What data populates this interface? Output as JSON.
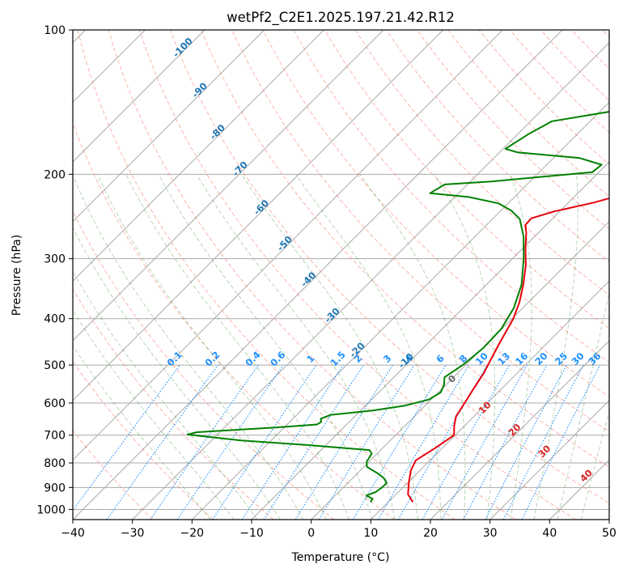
{
  "chart_data": {
    "type": "line",
    "title": "wetPf2_C2E1.2025.197.21.42.R12",
    "xlabel": "Temperature (°C)",
    "ylabel": "Pressure (hPa)",
    "xlim": [
      -40,
      50
    ],
    "ylim": [
      1050,
      100
    ],
    "y_scale": "log",
    "x_ticks": [
      -40,
      -30,
      -20,
      -10,
      0,
      10,
      20,
      30,
      40,
      50
    ],
    "y_ticks": [
      100,
      200,
      300,
      400,
      500,
      600,
      700,
      800,
      900,
      1000
    ],
    "grid": true,
    "skew": "temperature isotherms are skewed 45°",
    "isotherm_labels": [
      -100,
      -90,
      -80,
      -70,
      -60,
      -50,
      -40,
      -30,
      -20,
      -10
    ],
    "mixing_ratio_labels": [
      "0.1",
      "0.2",
      "0.4",
      "0.6",
      "1",
      "1.5",
      "2",
      "3",
      "4",
      "6",
      "8",
      "10",
      "13",
      "16",
      "20",
      "25",
      "30",
      "36"
    ],
    "moist_adiabat_labels": [
      "0",
      "10",
      "20",
      "30",
      "40"
    ],
    "colors": {
      "temperature": "#e8000b",
      "dewpoint": "#008000",
      "dry_adiabat": "#fa8072",
      "moist_adiabat": "#2e8b22",
      "mixing_ratio": "#1e90ff",
      "isotherm_label": "#1f77b4",
      "moist_label": "#d62728",
      "grid": "#aaaaaa"
    },
    "series": [
      {
        "profile": "temperature",
        "points": [
          [
            14.1,
            965
          ],
          [
            12.0,
            930
          ],
          [
            10.2,
            880
          ],
          [
            8.5,
            830
          ],
          [
            7.6,
            790
          ],
          [
            8.8,
            745
          ],
          [
            9.8,
            700
          ],
          [
            8.3,
            670
          ],
          [
            7.0,
            640
          ],
          [
            6.2,
            600
          ],
          [
            5.3,
            560
          ],
          [
            4.4,
            520
          ],
          [
            3.4,
            490
          ],
          [
            2.0,
            450
          ],
          [
            0.2,
            400
          ],
          [
            -1.5,
            370
          ],
          [
            -3.8,
            340
          ],
          [
            -6.6,
            310
          ],
          [
            -9.6,
            285
          ],
          [
            -12.0,
            265
          ],
          [
            -13.5,
            255
          ],
          [
            -13.6,
            247
          ],
          [
            -10.9,
            239
          ],
          [
            -5.7,
            229
          ],
          [
            -2.5,
            221
          ],
          [
            0.1,
            212
          ],
          [
            2.0,
            203
          ],
          [
            2.3,
            195
          ],
          [
            2.8,
            185
          ],
          [
            3.2,
            175
          ],
          [
            2.9,
            165
          ],
          [
            3.4,
            155
          ],
          [
            3.7,
            145
          ],
          [
            4.8,
            135
          ],
          [
            6.8,
            125
          ],
          [
            7.5,
            118
          ],
          [
            8.5,
            110
          ],
          [
            9.3,
            104
          ],
          [
            10.0,
            100
          ]
        ]
      },
      {
        "profile": "dewpoint",
        "points": [
          [
            7.0,
            965
          ],
          [
            6.8,
            950
          ],
          [
            5.2,
            935
          ],
          [
            6.2,
            920
          ],
          [
            6.5,
            900
          ],
          [
            6.5,
            880
          ],
          [
            5.2,
            860
          ],
          [
            3.3,
            840
          ],
          [
            0.5,
            815
          ],
          [
            -0.4,
            795
          ],
          [
            -0.9,
            765
          ],
          [
            -1.9,
            752
          ],
          [
            -12.5,
            735
          ],
          [
            -25.0,
            718
          ],
          [
            -35.0,
            698
          ],
          [
            -33.8,
            690
          ],
          [
            -21.5,
            675
          ],
          [
            -15.0,
            665
          ],
          [
            -14.7,
            657
          ],
          [
            -15.3,
            647
          ],
          [
            -14.3,
            635
          ],
          [
            -8.0,
            622
          ],
          [
            -3.5,
            608
          ],
          [
            -0.4,
            590
          ],
          [
            0.4,
            570
          ],
          [
            -0.3,
            550
          ],
          [
            -1.5,
            530
          ],
          [
            -0.5,
            500
          ],
          [
            0.1,
            460
          ],
          [
            -0.1,
            420
          ],
          [
            -1.5,
            380
          ],
          [
            -4.1,
            340
          ],
          [
            -8.1,
            300
          ],
          [
            -11.8,
            270
          ],
          [
            -15.4,
            248
          ],
          [
            -18.3,
            238
          ],
          [
            -21.6,
            230
          ],
          [
            -27.7,
            223
          ],
          [
            -34.8,
            219
          ],
          [
            -33.8,
            210
          ],
          [
            -26.5,
            207
          ],
          [
            -11.1,
            198
          ],
          [
            -10.8,
            191
          ],
          [
            -15.6,
            185
          ],
          [
            -27.0,
            180
          ],
          [
            -29.6,
            177
          ],
          [
            -28.2,
            165
          ],
          [
            -26.4,
            155
          ],
          [
            -18.3,
            148
          ],
          [
            -9.8,
            142
          ],
          [
            -2.3,
            137
          ],
          [
            -0.7,
            132
          ],
          [
            -2.3,
            127
          ],
          [
            -12.0,
            122
          ],
          [
            -18.3,
            118
          ],
          [
            -17.5,
            115
          ],
          [
            -9.8,
            111
          ],
          [
            -4.3,
            107
          ],
          [
            -0.2,
            103
          ],
          [
            1.5,
            100
          ]
        ]
      }
    ]
  }
}
